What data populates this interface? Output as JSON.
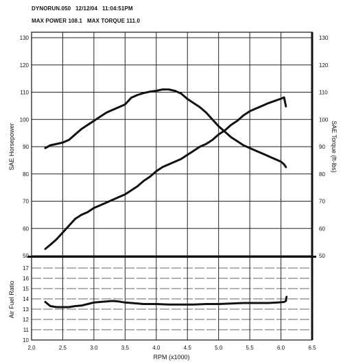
{
  "header": {
    "file": "DYNORUN.050",
    "date": "12/12/04",
    "time": "11:04:51PM",
    "max_power_label": "MAX POWER",
    "max_power_value": "108.1",
    "max_torque_label": "MAX TORQUE",
    "max_torque_value": "111.0"
  },
  "chart_data": [
    {
      "type": "line",
      "xlabel": "RPM (x1000)",
      "ylabel": "SAE Horsepower",
      "y2label": "SAE Torque (ft-lbs)",
      "xlim": [
        2.0,
        6.5
      ],
      "ylim": [
        50,
        130
      ],
      "xticks": [
        "2.0",
        "2.5",
        "3.0",
        "3.5",
        "4.0",
        "4.5",
        "5.0",
        "5.5",
        "6.0",
        "6.5"
      ],
      "yticks": [
        "50",
        "60",
        "70",
        "80",
        "90",
        "100",
        "110",
        "120",
        "130"
      ],
      "grid": true,
      "series": [
        {
          "axis": "left",
          "x": [
            2.22,
            2.3,
            2.4,
            2.5,
            2.6,
            2.7,
            2.8,
            2.9,
            3.0,
            3.1,
            3.2,
            3.3,
            3.4,
            3.5,
            3.6,
            3.7,
            3.8,
            3.9,
            4.0,
            4.1,
            4.2,
            4.3,
            4.4,
            4.5,
            4.6,
            4.7,
            4.8,
            4.9,
            5.0,
            5.1,
            5.2,
            5.3,
            5.4,
            5.5,
            5.6,
            5.7,
            5.8,
            5.9,
            6.0,
            6.05,
            6.08
          ],
          "y": [
            52.5,
            54,
            56,
            58.5,
            61,
            63.5,
            65,
            66,
            67.5,
            68.5,
            69.5,
            70.5,
            71.5,
            72.5,
            74,
            75.5,
            77.5,
            79,
            81,
            82.5,
            83.5,
            84.5,
            85.5,
            87,
            88.5,
            90,
            91,
            92.5,
            94.5,
            96,
            98,
            99.5,
            101.5,
            103,
            104,
            105,
            106,
            106.8,
            107.6,
            108.1,
            104.8
          ]
        },
        {
          "axis": "right",
          "x": [
            2.22,
            2.3,
            2.4,
            2.5,
            2.6,
            2.7,
            2.8,
            2.9,
            3.0,
            3.1,
            3.2,
            3.3,
            3.4,
            3.5,
            3.6,
            3.7,
            3.8,
            3.9,
            4.0,
            4.1,
            4.2,
            4.3,
            4.4,
            4.5,
            4.6,
            4.7,
            4.8,
            4.9,
            5.0,
            5.1,
            5.2,
            5.3,
            5.4,
            5.5,
            5.6,
            5.7,
            5.8,
            5.9,
            6.0,
            6.05,
            6.08
          ],
          "y": [
            89.5,
            90.5,
            91,
            91.5,
            92.5,
            94.5,
            96.5,
            98,
            99.5,
            101,
            102.5,
            103.5,
            104.5,
            105.5,
            108,
            109,
            109.7,
            110.2,
            110.5,
            111,
            111,
            110.5,
            109.5,
            107.5,
            106,
            104.5,
            102.5,
            100,
            97.5,
            95.5,
            93.5,
            92,
            90.5,
            89.5,
            88.5,
            87.5,
            86.5,
            85.5,
            84.5,
            83.5,
            82.5
          ]
        }
      ]
    },
    {
      "type": "line",
      "xlabel": "RPM (x1000)",
      "ylabel": "Air Fuel Ratio",
      "xlim": [
        2.0,
        6.5
      ],
      "ylim": [
        10,
        18
      ],
      "xticks": [
        "2.0",
        "2.5",
        "3.0",
        "3.5",
        "4.0",
        "4.5",
        "5.0",
        "5.5",
        "6.0",
        "6.5"
      ],
      "yticks": [
        "10",
        "11",
        "12",
        "13",
        "14",
        "15",
        "16",
        "17"
      ],
      "grid": true,
      "series": [
        {
          "x": [
            2.22,
            2.3,
            2.4,
            2.5,
            2.6,
            2.7,
            2.8,
            2.9,
            3.0,
            3.1,
            3.2,
            3.3,
            3.4,
            3.5,
            3.6,
            3.7,
            3.8,
            4.0,
            4.2,
            4.4,
            4.6,
            4.8,
            5.0,
            5.2,
            5.4,
            5.6,
            5.8,
            5.95,
            6.05,
            6.08,
            6.09
          ],
          "y": [
            13.7,
            13.3,
            13.2,
            13.2,
            13.2,
            13.3,
            13.35,
            13.5,
            13.65,
            13.7,
            13.75,
            13.8,
            13.75,
            13.65,
            13.6,
            13.55,
            13.5,
            13.5,
            13.45,
            13.45,
            13.45,
            13.5,
            13.5,
            13.55,
            13.6,
            13.6,
            13.6,
            13.65,
            13.7,
            13.8,
            14.2
          ]
        }
      ]
    }
  ]
}
